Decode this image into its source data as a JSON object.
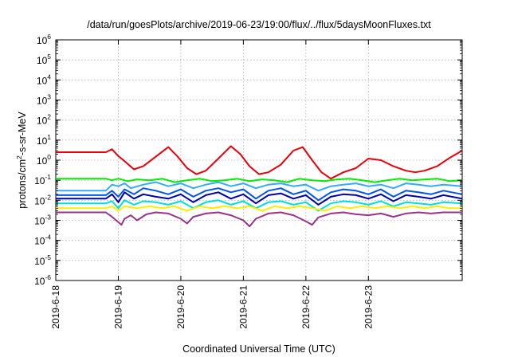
{
  "chart_data": {
    "type": "line",
    "title": "/data/run/goesPlots/archive/2019-06-23/19:00/flux/../flux/5daysMoonFluxes.txt",
    "xlabel": "Coordinated Universal Time (UTC)",
    "ylabel": {
      "prefix": "protons/cm",
      "sup": "2",
      "suffix": "-s-sr-MeV"
    },
    "yscale": "log",
    "ylim": [
      1e-06,
      1000000.0
    ],
    "xlim": [
      0,
      6.5
    ],
    "grid": true,
    "x_ticks": [
      {
        "x": 0,
        "label": "2019-6-18"
      },
      {
        "x": 1,
        "label": "2019-6-19"
      },
      {
        "x": 2,
        "label": "2019-6-20"
      },
      {
        "x": 3,
        "label": "2019-6-21"
      },
      {
        "x": 4,
        "label": "2019-6-22"
      },
      {
        "x": 5,
        "label": "2019-6-23"
      }
    ],
    "y_ticks": [
      {
        "exp": -6,
        "base": "10",
        "power": "-6"
      },
      {
        "exp": -5,
        "base": "10",
        "power": "-5"
      },
      {
        "exp": -4,
        "base": "10",
        "power": "-4"
      },
      {
        "exp": -3,
        "base": "10",
        "power": "-3"
      },
      {
        "exp": -2,
        "base": "10",
        "power": "-2"
      },
      {
        "exp": -1,
        "base": "10",
        "power": "-1"
      },
      {
        "exp": 0,
        "base": "10",
        "power": "0"
      },
      {
        "exp": 1,
        "base": "10",
        "power": "1"
      },
      {
        "exp": 2,
        "base": "10",
        "power": "2"
      },
      {
        "exp": 3,
        "base": "10",
        "power": "3"
      },
      {
        "exp": 4,
        "base": "10",
        "power": "4"
      },
      {
        "exp": 5,
        "base": "10",
        "power": "5"
      },
      {
        "exp": 6,
        "base": "10",
        "power": "6"
      }
    ],
    "series": [
      {
        "color": "#e8000b",
        "x": [
          0,
          0.8,
          0.9,
          1.0,
          1.1,
          1.25,
          1.4,
          1.6,
          1.8,
          1.95,
          2.1,
          2.25,
          2.4,
          2.6,
          2.8,
          2.95,
          3.1,
          3.25,
          3.4,
          3.6,
          3.8,
          3.95,
          4.1,
          4.25,
          4.4,
          4.6,
          4.8,
          5.0,
          5.2,
          5.4,
          5.6,
          5.75,
          5.9,
          6.1,
          6.3,
          6.5
        ],
        "y": [
          2.5,
          2.5,
          3.5,
          1.6,
          0.9,
          0.35,
          0.5,
          1.5,
          4.5,
          1.5,
          0.4,
          0.2,
          0.3,
          1.2,
          5.0,
          2.0,
          0.5,
          0.2,
          0.25,
          0.6,
          3.0,
          4.5,
          1.0,
          0.25,
          0.12,
          0.25,
          0.4,
          1.2,
          1.0,
          0.5,
          0.3,
          0.25,
          0.3,
          0.5,
          1.3,
          3.0
        ]
      },
      {
        "color": "#00ee00",
        "x": [
          0,
          0.8,
          0.9,
          1.0,
          1.15,
          1.3,
          1.5,
          1.7,
          1.9,
          2.1,
          2.3,
          2.5,
          2.7,
          2.9,
          3.1,
          3.3,
          3.5,
          3.7,
          3.9,
          4.1,
          4.3,
          4.5,
          4.7,
          4.9,
          5.1,
          5.3,
          5.5,
          5.7,
          5.9,
          6.1,
          6.3,
          6.5
        ],
        "y": [
          0.12,
          0.12,
          0.1,
          0.12,
          0.09,
          0.11,
          0.1,
          0.12,
          0.08,
          0.1,
          0.12,
          0.09,
          0.1,
          0.12,
          0.09,
          0.11,
          0.1,
          0.08,
          0.12,
          0.1,
          0.09,
          0.11,
          0.12,
          0.1,
          0.08,
          0.1,
          0.12,
          0.1,
          0.11,
          0.12,
          0.09,
          0.1
        ]
      },
      {
        "color": "#33aaff",
        "x": [
          0,
          0.8,
          0.9,
          1.0,
          1.1,
          1.2,
          1.4,
          1.6,
          1.8,
          2.0,
          2.2,
          2.4,
          2.6,
          2.8,
          3.0,
          3.2,
          3.4,
          3.6,
          3.8,
          4.0,
          4.2,
          4.4,
          4.6,
          4.8,
          5.0,
          5.2,
          5.4,
          5.6,
          5.8,
          6.0,
          6.2,
          6.5
        ],
        "y": [
          0.03,
          0.03,
          0.06,
          0.05,
          0.07,
          0.04,
          0.06,
          0.08,
          0.05,
          0.07,
          0.04,
          0.06,
          0.08,
          0.05,
          0.07,
          0.04,
          0.06,
          0.07,
          0.05,
          0.06,
          0.03,
          0.05,
          0.06,
          0.07,
          0.05,
          0.06,
          0.04,
          0.07,
          0.06,
          0.05,
          0.06,
          0.05
        ]
      },
      {
        "color": "#0055ee",
        "x": [
          0,
          0.8,
          0.9,
          1.0,
          1.1,
          1.25,
          1.4,
          1.6,
          1.8,
          2.0,
          2.2,
          2.4,
          2.6,
          2.8,
          3.0,
          3.2,
          3.4,
          3.6,
          3.8,
          4.0,
          4.2,
          4.4,
          4.6,
          4.8,
          5.0,
          5.2,
          5.4,
          5.6,
          5.8,
          6.0,
          6.2,
          6.5
        ],
        "y": [
          0.018,
          0.018,
          0.03,
          0.015,
          0.035,
          0.02,
          0.04,
          0.03,
          0.02,
          0.035,
          0.015,
          0.03,
          0.04,
          0.025,
          0.035,
          0.012,
          0.03,
          0.04,
          0.02,
          0.03,
          0.01,
          0.025,
          0.035,
          0.03,
          0.02,
          0.035,
          0.015,
          0.03,
          0.025,
          0.02,
          0.03,
          0.02
        ]
      },
      {
        "color": "#0000aa",
        "x": [
          0,
          0.8,
          0.9,
          1.0,
          1.1,
          1.25,
          1.4,
          1.6,
          1.8,
          2.0,
          2.2,
          2.4,
          2.6,
          2.8,
          3.0,
          3.2,
          3.4,
          3.6,
          3.8,
          4.0,
          4.2,
          4.4,
          4.6,
          4.8,
          5.0,
          5.2,
          5.4,
          5.6,
          5.8,
          6.0,
          6.2,
          6.5
        ],
        "y": [
          0.012,
          0.012,
          0.02,
          0.008,
          0.025,
          0.012,
          0.02,
          0.015,
          0.012,
          0.02,
          0.008,
          0.018,
          0.025,
          0.012,
          0.02,
          0.007,
          0.018,
          0.022,
          0.012,
          0.018,
          0.006,
          0.015,
          0.02,
          0.018,
          0.012,
          0.02,
          0.009,
          0.018,
          0.015,
          0.012,
          0.018,
          0.012
        ]
      },
      {
        "color": "#00dddd",
        "x": [
          0,
          0.8,
          0.9,
          1.0,
          1.1,
          1.25,
          1.4,
          1.6,
          1.8,
          2.0,
          2.2,
          2.4,
          2.6,
          2.8,
          3.0,
          3.2,
          3.4,
          3.6,
          3.8,
          4.0,
          4.2,
          4.4,
          4.6,
          4.8,
          5.0,
          5.2,
          5.4,
          5.6,
          5.8,
          6.0,
          6.2,
          6.5
        ],
        "y": [
          0.007,
          0.007,
          0.009,
          0.004,
          0.01,
          0.006,
          0.009,
          0.008,
          0.006,
          0.009,
          0.004,
          0.008,
          0.01,
          0.006,
          0.009,
          0.004,
          0.008,
          0.009,
          0.006,
          0.008,
          0.003,
          0.007,
          0.009,
          0.008,
          0.006,
          0.009,
          0.005,
          0.008,
          0.007,
          0.006,
          0.008,
          0.007
        ]
      },
      {
        "color": "#ffee00",
        "x": [
          0,
          0.8,
          0.9,
          1.0,
          1.1,
          1.3,
          1.5,
          1.7,
          1.9,
          2.1,
          2.3,
          2.5,
          2.7,
          2.9,
          3.1,
          3.3,
          3.5,
          3.7,
          3.9,
          4.1,
          4.3,
          4.5,
          4.7,
          4.9,
          5.1,
          5.3,
          5.5,
          5.7,
          5.9,
          6.1,
          6.3,
          6.5
        ],
        "y": [
          0.004,
          0.004,
          0.005,
          0.003,
          0.005,
          0.004,
          0.005,
          0.004,
          0.005,
          0.003,
          0.005,
          0.004,
          0.005,
          0.004,
          0.005,
          0.003,
          0.005,
          0.004,
          0.005,
          0.004,
          0.003,
          0.005,
          0.004,
          0.005,
          0.004,
          0.005,
          0.004,
          0.005,
          0.004,
          0.005,
          0.004,
          0.004
        ]
      },
      {
        "color": "#993388",
        "x": [
          0,
          0.8,
          0.9,
          1.0,
          1.05,
          1.1,
          1.2,
          1.3,
          1.45,
          1.6,
          1.8,
          2.0,
          2.1,
          2.2,
          2.4,
          2.6,
          2.8,
          3.0,
          3.1,
          3.2,
          3.4,
          3.6,
          3.8,
          4.0,
          4.1,
          4.2,
          4.4,
          4.6,
          4.8,
          5.0,
          5.2,
          5.4,
          5.6,
          5.8,
          6.0,
          6.2,
          6.5
        ],
        "y": [
          0.0025,
          0.0025,
          0.0015,
          0.0008,
          0.0006,
          0.0012,
          0.0018,
          0.001,
          0.002,
          0.0025,
          0.0022,
          0.0012,
          0.0007,
          0.0015,
          0.0022,
          0.0025,
          0.0018,
          0.001,
          0.0005,
          0.0012,
          0.0022,
          0.0025,
          0.0018,
          0.0009,
          0.0006,
          0.0014,
          0.0022,
          0.0025,
          0.002,
          0.0018,
          0.0022,
          0.0015,
          0.0022,
          0.0025,
          0.0022,
          0.0025,
          0.0025
        ]
      }
    ]
  }
}
